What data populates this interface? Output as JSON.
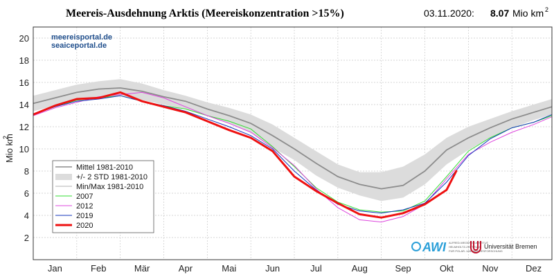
{
  "header": {
    "title": "Meereis-Ausdehnung Arktis (Meereiskonzentration >15%)",
    "date": "03.11.2020:",
    "value": "8.07",
    "unit": "Mio km",
    "unit_sup": "2"
  },
  "sites": [
    "meereisportal.de",
    "seaiceportal.de"
  ],
  "logos": {
    "awi": "AWI",
    "awi_small": [
      "ALFRED-WEGENER-INSTITUT",
      "HELMHOLTZ-ZENTRUM",
      "FÜR POLAR- UND MEERESFORSCHUNG"
    ],
    "bremen": "Universität Bremen"
  },
  "chart_data": {
    "type": "line",
    "xlabel": "",
    "ylabel": "Mio km",
    "ylabel_sup": "2",
    "ylim": [
      0,
      21
    ],
    "yticks": [
      2,
      4,
      6,
      8,
      10,
      12,
      14,
      16,
      18,
      20
    ],
    "xlim": [
      1,
      12.92
    ],
    "month_labels": [
      "Jan",
      "Feb",
      "Mär",
      "Apr",
      "Mai",
      "Jun",
      "Jul",
      "Aug",
      "Sep",
      "Okt",
      "Nov",
      "Dez"
    ],
    "grid": true,
    "legend_placement": "bottom-left",
    "legend": [
      "Mittel 1981-2010",
      "+/- 2 STD 1981-2010",
      "Min/Max 1981-2010",
      "2007",
      "2012",
      "2019",
      "2020"
    ],
    "colors": {
      "mean": "#8c8c8c",
      "std_band": "#dcdcdc",
      "minmax": "#b0b0b0",
      "2007": "#33dd33",
      "2012": "#dd44dd",
      "2019": "#1133bb",
      "2020": "#ee1111"
    },
    "x": [
      1.0,
      1.5,
      2.0,
      2.5,
      3.0,
      3.5,
      4.0,
      4.5,
      5.0,
      5.5,
      6.0,
      6.5,
      7.0,
      7.5,
      8.0,
      8.5,
      9.0,
      9.5,
      10.0,
      10.5,
      11.0,
      11.5,
      12.0,
      12.5,
      12.92
    ],
    "mean": [
      14.1,
      14.6,
      15.1,
      15.4,
      15.5,
      15.2,
      14.7,
      14.3,
      13.6,
      13.0,
      12.3,
      11.2,
      10.0,
      8.7,
      7.5,
      6.8,
      6.4,
      6.7,
      8.0,
      9.9,
      11.0,
      11.9,
      12.7,
      13.3,
      13.8
    ],
    "std_upper": [
      14.8,
      15.3,
      15.8,
      16.1,
      16.3,
      15.9,
      15.3,
      14.8,
      14.2,
      13.7,
      13.1,
      12.2,
      11.0,
      9.8,
      8.6,
      7.9,
      7.9,
      8.4,
      9.5,
      11.0,
      12.0,
      12.7,
      13.4,
      14.0,
      14.5
    ],
    "std_lower": [
      13.4,
      13.9,
      14.3,
      14.6,
      14.8,
      14.4,
      14.0,
      13.6,
      13.0,
      12.3,
      11.5,
      10.1,
      9.0,
      7.6,
      6.5,
      5.8,
      5.3,
      5.6,
      6.8,
      8.6,
      9.9,
      11.0,
      11.9,
      12.6,
      13.1
    ],
    "series": [
      {
        "name": "2007",
        "x": [
          1.0,
          1.5,
          2.0,
          2.5,
          3.0,
          3.5,
          4.0,
          4.5,
          5.0,
          5.5,
          6.0,
          6.5,
          7.0,
          7.5,
          8.0,
          8.5,
          9.0,
          9.5,
          10.0,
          10.5,
          11.0,
          11.5,
          12.0,
          12.5,
          12.92
        ],
        "values": [
          13.1,
          13.8,
          14.4,
          14.6,
          14.8,
          14.3,
          13.9,
          13.6,
          13.0,
          12.5,
          11.8,
          10.2,
          8.4,
          6.5,
          5.2,
          4.5,
          4.3,
          4.4,
          5.3,
          7.5,
          9.8,
          11.0,
          11.9,
          12.4,
          13.0
        ]
      },
      {
        "name": "2012",
        "x": [
          1.0,
          1.5,
          2.0,
          2.5,
          3.0,
          3.5,
          4.0,
          4.5,
          5.0,
          5.5,
          6.0,
          6.5,
          7.0,
          7.5,
          8.0,
          8.5,
          9.0,
          9.5,
          10.0,
          10.5,
          11.0,
          11.5,
          12.0,
          12.5,
          12.92
        ],
        "values": [
          13.0,
          13.7,
          14.2,
          14.7,
          14.9,
          15.1,
          14.6,
          13.8,
          13.0,
          12.3,
          11.5,
          10.1,
          8.5,
          6.4,
          4.7,
          3.6,
          3.4,
          3.9,
          5.0,
          7.3,
          9.5,
          10.6,
          11.5,
          12.2,
          12.9
        ]
      },
      {
        "name": "2019",
        "x": [
          1.0,
          1.5,
          2.0,
          2.5,
          3.0,
          3.5,
          4.0,
          4.5,
          5.0,
          5.5,
          6.0,
          6.5,
          7.0,
          7.5,
          8.0,
          8.5,
          9.0,
          9.5,
          10.0,
          10.5,
          11.0,
          11.5,
          12.0,
          12.5,
          12.92
        ],
        "values": [
          13.1,
          13.8,
          14.3,
          14.5,
          14.8,
          14.3,
          13.9,
          13.4,
          12.7,
          12.0,
          11.2,
          10.0,
          8.0,
          6.3,
          5.0,
          4.4,
          4.2,
          4.5,
          5.1,
          7.0,
          9.4,
          10.9,
          11.9,
          12.4,
          13.1
        ]
      }
    ],
    "series_2020": {
      "name": "2020",
      "x": [
        1.0,
        1.5,
        2.0,
        2.5,
        3.0,
        3.5,
        4.0,
        4.5,
        5.0,
        5.5,
        6.0,
        6.5,
        7.0,
        7.5,
        8.0,
        8.5,
        9.0,
        9.5,
        10.0,
        10.5,
        10.73
      ],
      "values": [
        13.1,
        13.9,
        14.5,
        14.6,
        15.1,
        14.3,
        13.8,
        13.3,
        12.5,
        11.7,
        11.0,
        9.8,
        7.5,
        6.2,
        5.1,
        4.1,
        3.8,
        4.2,
        5.0,
        6.3,
        8.07
      ]
    }
  }
}
